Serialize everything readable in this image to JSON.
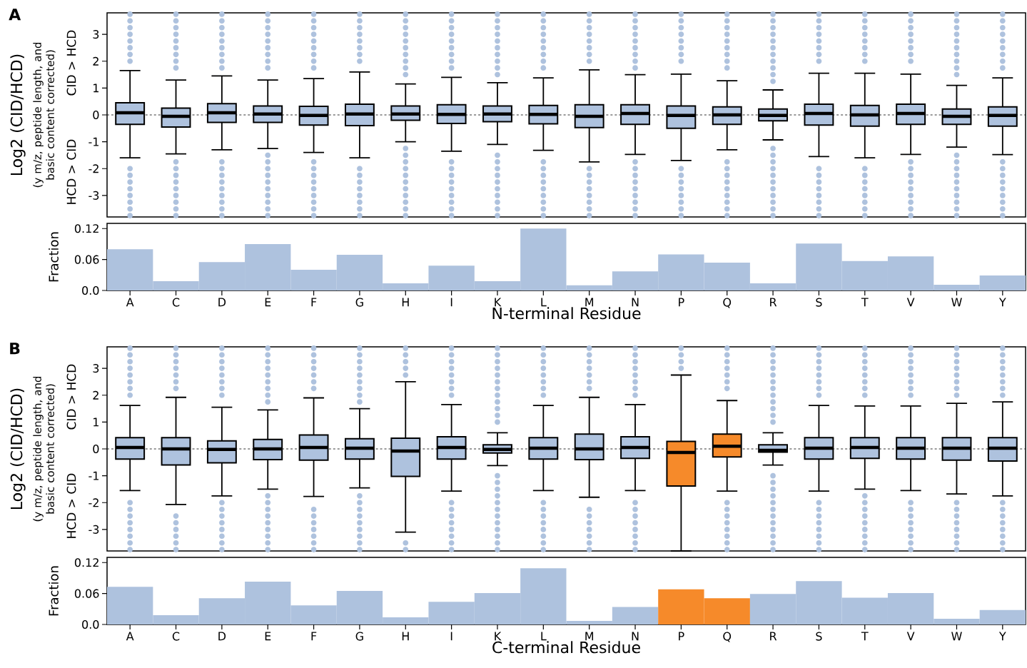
{
  "chart_data": [
    {
      "type": "box",
      "title": "A",
      "ylabel": "Log2 (CID/HCD)",
      "annotations": [
        "(y m/z, peptide length, and basic content corrected)",
        "CID > HCD",
        "HCD > CID"
      ],
      "categories": [
        null,
        null,
        null,
        null,
        null,
        null,
        null,
        null,
        null,
        null,
        null,
        null,
        null,
        null,
        null,
        null,
        null,
        null,
        null,
        null
      ],
      "ylim": [
        -3.8,
        3.8
      ],
      "yticks": [
        -3,
        -2,
        -1,
        0,
        1,
        2,
        3
      ],
      "tick_labels": "y",
      "color": "#aec2de",
      "colors": [
        "#aec2de",
        "#aec2de",
        "#aec2de",
        "#aec2de",
        "#aec2de",
        "#aec2de",
        "#aec2de",
        "#aec2de",
        "#aec2de",
        "#aec2de",
        "#aec2de",
        "#aec2de",
        "#aec2de",
        "#aec2de",
        "#aec2de",
        "#aec2de",
        "#aec2de",
        "#aec2de",
        "#aec2de",
        "#aec2de"
      ],
      "ref_lines": [
        {
          "axis": "y",
          "value": 0,
          "line_style": "dashed",
          "color": "#000000"
        }
      ],
      "boxes": [
        {
          "low": -1.6,
          "q1": -0.35,
          "median": 0.08,
          "q3": 0.45,
          "high": 1.65,
          "outliers": [
            -3.75,
            -3.5,
            -3.25,
            -3,
            -2.75,
            -2.5,
            -2.25,
            -2,
            2,
            2.25,
            2.5,
            2.75,
            3,
            3.25,
            3.5,
            3.75
          ]
        },
        {
          "low": -1.45,
          "q1": -0.45,
          "median": -0.05,
          "q3": 0.25,
          "high": 1.3,
          "outliers": [
            -3.75,
            -3.5,
            -3.25,
            -3,
            -2.75,
            -2.5,
            -2.25,
            -2,
            -1.75,
            1.75,
            2,
            2.25,
            2.5,
            2.75,
            3,
            3.25,
            3.5,
            3.75
          ]
        },
        {
          "low": -1.3,
          "q1": -0.28,
          "median": 0.08,
          "q3": 0.42,
          "high": 1.45,
          "outliers": [
            -3.75,
            -3.5,
            -3.25,
            -3,
            -2.75,
            -2.5,
            -2.25,
            -2,
            -1.75,
            1.75,
            2,
            2.25,
            2.5,
            2.75,
            3,
            3.25,
            3.5,
            3.75
          ]
        },
        {
          "low": -1.25,
          "q1": -0.28,
          "median": 0.03,
          "q3": 0.33,
          "high": 1.3,
          "outliers": [
            -3.75,
            -3.5,
            -3.25,
            -3,
            -2.75,
            -2.5,
            -2.25,
            -2,
            -1.75,
            -1.5,
            1.75,
            2,
            2.25,
            2.5,
            2.75,
            3,
            3.25,
            3.5,
            3.75
          ]
        },
        {
          "low": -1.4,
          "q1": -0.38,
          "median": -0.02,
          "q3": 0.32,
          "high": 1.35,
          "outliers": [
            -3.75,
            -3.5,
            -3.25,
            -3,
            -2.75,
            -2.5,
            -2.25,
            -2,
            -1.75,
            1.75,
            2,
            2.25,
            2.5,
            2.75,
            3,
            3.25,
            3.5,
            3.75
          ]
        },
        {
          "low": -1.6,
          "q1": -0.4,
          "median": 0.03,
          "q3": 0.4,
          "high": 1.6,
          "outliers": [
            -3.75,
            -3.5,
            -3.25,
            -3,
            -2.75,
            -2.5,
            -2.25,
            -2,
            2,
            2.25,
            2.5,
            2.75,
            3,
            3.25,
            3.5,
            3.75
          ]
        },
        {
          "low": -1.0,
          "q1": -0.2,
          "median": 0.03,
          "q3": 0.33,
          "high": 1.15,
          "outliers": [
            -3.75,
            -3.5,
            -3.25,
            -3,
            -2.75,
            -2.5,
            -2.25,
            -2,
            -1.75,
            -1.5,
            -1.25,
            1.5,
            1.75,
            2,
            2.25,
            2.5,
            2.75,
            3,
            3.25,
            3.5,
            3.75
          ]
        },
        {
          "low": -1.35,
          "q1": -0.32,
          "median": 0.02,
          "q3": 0.38,
          "high": 1.4,
          "outliers": [
            -3.75,
            -3.5,
            -3.25,
            -3,
            -2.75,
            -2.5,
            -2.25,
            -2,
            -1.75,
            1.75,
            2,
            2.25,
            2.5,
            2.75,
            3,
            3.25,
            3.5,
            3.75
          ]
        },
        {
          "low": -1.1,
          "q1": -0.25,
          "median": 0.03,
          "q3": 0.33,
          "high": 1.2,
          "outliers": [
            -3.75,
            -3.5,
            -3.25,
            -3,
            -2.75,
            -2.5,
            -2.25,
            -2,
            -1.75,
            -1.5,
            1.5,
            1.75,
            2,
            2.25,
            2.5,
            2.75,
            3,
            3.25,
            3.5,
            3.75
          ]
        },
        {
          "low": -1.32,
          "q1": -0.33,
          "median": 0.02,
          "q3": 0.35,
          "high": 1.38,
          "outliers": [
            -3.75,
            -3.5,
            -3.25,
            -3,
            -2.75,
            -2.5,
            -2.25,
            -2,
            -1.75,
            1.75,
            2,
            2.25,
            2.5,
            2.75,
            3,
            3.25,
            3.5,
            3.75
          ]
        },
        {
          "low": -1.75,
          "q1": -0.47,
          "median": -0.05,
          "q3": 0.38,
          "high": 1.68,
          "outliers": [
            -3.75,
            -3.5,
            -3.25,
            -3,
            -2.75,
            -2.5,
            -2.25,
            -2,
            2,
            2.25,
            2.5,
            2.75,
            3,
            3.25,
            3.5,
            3.75
          ]
        },
        {
          "low": -1.47,
          "q1": -0.35,
          "median": 0.05,
          "q3": 0.38,
          "high": 1.5,
          "outliers": [
            -3.75,
            -3.5,
            -3.25,
            -3,
            -2.75,
            -2.5,
            -2.25,
            -2,
            -1.75,
            1.75,
            2,
            2.25,
            2.5,
            2.75,
            3,
            3.25,
            3.5,
            3.75
          ]
        },
        {
          "low": -1.7,
          "q1": -0.5,
          "median": -0.02,
          "q3": 0.33,
          "high": 1.52,
          "outliers": [
            -3.75,
            -3.5,
            -3.25,
            -3,
            -2.75,
            -2.5,
            -2.25,
            -2,
            2,
            2.25,
            2.5,
            2.75,
            3,
            3.25,
            3.5,
            3.75
          ]
        },
        {
          "low": -1.3,
          "q1": -0.35,
          "median": 0.0,
          "q3": 0.3,
          "high": 1.27,
          "outliers": [
            -3.75,
            -3.5,
            -3.25,
            -3,
            -2.75,
            -2.5,
            -2.25,
            -2,
            -1.75,
            1.75,
            2,
            2.25,
            2.5,
            2.75,
            3,
            3.25,
            3.5,
            3.75
          ]
        },
        {
          "low": -0.93,
          "q1": -0.22,
          "median": -0.02,
          "q3": 0.22,
          "high": 0.93,
          "outliers": [
            -3.75,
            -3.5,
            -3.25,
            -3,
            -2.75,
            -2.5,
            -2.25,
            -2,
            -1.75,
            -1.5,
            -1.25,
            1.25,
            1.5,
            1.75,
            2,
            2.25,
            2.5,
            2.75,
            3,
            3.25,
            3.5,
            3.75
          ]
        },
        {
          "low": -1.55,
          "q1": -0.38,
          "median": 0.05,
          "q3": 0.4,
          "high": 1.55,
          "outliers": [
            -3.75,
            -3.5,
            -3.25,
            -3,
            -2.75,
            -2.5,
            -2.25,
            -2,
            2,
            2.25,
            2.5,
            2.75,
            3,
            3.25,
            3.5,
            3.75
          ]
        },
        {
          "low": -1.6,
          "q1": -0.42,
          "median": 0.0,
          "q3": 0.35,
          "high": 1.55,
          "outliers": [
            -3.75,
            -3.5,
            -3.25,
            -3,
            -2.75,
            -2.5,
            -2.25,
            -2,
            2,
            2.25,
            2.5,
            2.75,
            3,
            3.25,
            3.5,
            3.75
          ]
        },
        {
          "low": -1.47,
          "q1": -0.35,
          "median": 0.05,
          "q3": 0.4,
          "high": 1.52,
          "outliers": [
            -3.75,
            -3.5,
            -3.25,
            -3,
            -2.75,
            -2.5,
            -2.25,
            -2,
            -1.75,
            2,
            2.25,
            2.5,
            2.75,
            3,
            3.25,
            3.5,
            3.75
          ]
        },
        {
          "low": -1.2,
          "q1": -0.35,
          "median": -0.05,
          "q3": 0.22,
          "high": 1.1,
          "outliers": [
            -3.75,
            -3.5,
            -3.25,
            -3,
            -2.75,
            -2.5,
            -2.25,
            -2,
            -1.75,
            -1.5,
            1.5,
            1.75,
            2,
            2.25,
            2.5,
            2.75,
            3,
            3.25,
            3.5,
            3.75
          ]
        },
        {
          "low": -1.48,
          "q1": -0.42,
          "median": -0.02,
          "q3": 0.3,
          "high": 1.38,
          "outliers": [
            -3.75,
            -3.5,
            -3.25,
            -3,
            -2.75,
            -2.5,
            -2.25,
            -2,
            -1.75,
            1.75,
            2,
            2.25,
            2.5,
            2.75,
            3,
            3.25,
            3.5,
            3.75
          ]
        }
      ]
    },
    {
      "type": "bar",
      "xlabel": "N-terminal Residue",
      "ylabel": "Fraction",
      "categories": [
        "A",
        "C",
        "D",
        "E",
        "F",
        "G",
        "H",
        "I",
        "K",
        "L",
        "M",
        "N",
        "P",
        "Q",
        "R",
        "S",
        "T",
        "V",
        "W",
        "Y"
      ],
      "ylim": [
        0,
        0.13
      ],
      "yticks": [
        {
          "value": 0,
          "label": "0.0"
        },
        0.06,
        0.12
      ],
      "values": [
        0.08,
        0.018,
        0.055,
        0.09,
        0.04,
        0.069,
        0.014,
        0.048,
        0.018,
        0.12,
        0.01,
        0.037,
        0.07,
        0.054,
        0.014,
        0.091,
        0.057,
        0.066,
        0.011,
        0.029
      ],
      "colors": [
        "#aec2de",
        "#aec2de",
        "#aec2de",
        "#aec2de",
        "#aec2de",
        "#aec2de",
        "#aec2de",
        "#aec2de",
        "#aec2de",
        "#aec2de",
        "#aec2de",
        "#aec2de",
        "#aec2de",
        "#aec2de",
        "#aec2de",
        "#aec2de",
        "#aec2de",
        "#aec2de",
        "#aec2de",
        "#aec2de"
      ]
    },
    {
      "type": "box",
      "title": "B",
      "ylabel": "Log2 (CID/HCD)",
      "annotations": [
        "(y m/z, peptide length, and basic content corrected)",
        "CID > HCD",
        "HCD > CID"
      ],
      "categories": [
        null,
        null,
        null,
        null,
        null,
        null,
        null,
        null,
        null,
        null,
        null,
        null,
        null,
        null,
        null,
        null,
        null,
        null,
        null,
        null
      ],
      "ylim": [
        -3.8,
        3.8
      ],
      "yticks": [
        -3,
        -2,
        -1,
        0,
        1,
        2,
        3
      ],
      "tick_labels": "y",
      "color": "#aec2de",
      "colors": [
        "#aec2de",
        "#aec2de",
        "#aec2de",
        "#aec2de",
        "#aec2de",
        "#aec2de",
        "#aec2de",
        "#aec2de",
        "#aec2de",
        "#aec2de",
        "#aec2de",
        "#aec2de",
        "#f68a2a",
        "#f68a2a",
        "#aec2de",
        "#aec2de",
        "#aec2de",
        "#aec2de",
        "#aec2de",
        "#aec2de"
      ],
      "ref_lines": [
        {
          "axis": "y",
          "value": 0,
          "line_style": "dashed",
          "color": "#000000"
        }
      ],
      "boxes": [
        {
          "low": -1.55,
          "q1": -0.38,
          "median": 0.05,
          "q3": 0.42,
          "high": 1.62,
          "outliers": [
            -3.75,
            -3.5,
            -3.25,
            -3,
            -2.75,
            -2.5,
            -2.25,
            -2,
            2,
            2.25,
            2.5,
            2.75,
            3,
            3.25,
            3.5,
            3.75
          ]
        },
        {
          "low": -2.07,
          "q1": -0.6,
          "median": 0.0,
          "q3": 0.42,
          "high": 1.92,
          "outliers": [
            -3.75,
            -3.5,
            -3.25,
            -3,
            -2.75,
            -2.5,
            2.25,
            2.5,
            2.75,
            3,
            3.25,
            3.5,
            3.75
          ]
        },
        {
          "low": -1.75,
          "q1": -0.52,
          "median": -0.02,
          "q3": 0.3,
          "high": 1.55,
          "outliers": [
            -3.75,
            -3.5,
            -3.25,
            -3,
            -2.75,
            -2.5,
            -2.25,
            -2,
            2,
            2.25,
            2.5,
            2.75,
            3,
            3.25,
            3.5,
            3.75
          ]
        },
        {
          "low": -1.5,
          "q1": -0.4,
          "median": 0.0,
          "q3": 0.35,
          "high": 1.45,
          "outliers": [
            -3.75,
            -3.5,
            -3.25,
            -3,
            -2.75,
            -2.5,
            -2.25,
            -2,
            -1.75,
            1.75,
            2,
            2.25,
            2.5,
            2.75,
            3,
            3.25,
            3.5,
            3.75
          ]
        },
        {
          "low": -1.77,
          "q1": -0.42,
          "median": 0.05,
          "q3": 0.52,
          "high": 1.9,
          "outliers": [
            -3.75,
            -3.5,
            -3.25,
            -3,
            -2.75,
            -2.5,
            -2.25,
            2.25,
            2.5,
            2.75,
            3,
            3.25,
            3.5,
            3.75
          ]
        },
        {
          "low": -1.45,
          "q1": -0.38,
          "median": 0.03,
          "q3": 0.38,
          "high": 1.5,
          "outliers": [
            -3.75,
            -3.5,
            -3.25,
            -3,
            -2.75,
            -2.5,
            -2.25,
            -2,
            -1.75,
            1.75,
            2,
            2.25,
            2.5,
            2.75,
            3,
            3.25,
            3.5,
            3.75
          ]
        },
        {
          "low": -3.1,
          "q1": -1.02,
          "median": -0.08,
          "q3": 0.4,
          "high": 2.5,
          "outliers": [
            -3.75,
            -3.5,
            2.75,
            3,
            3.25,
            3.5,
            3.75
          ]
        },
        {
          "low": -1.57,
          "q1": -0.38,
          "median": 0.05,
          "q3": 0.45,
          "high": 1.65,
          "outliers": [
            -3.75,
            -3.5,
            -3.25,
            -3,
            -2.75,
            -2.5,
            -2.25,
            -2,
            2,
            2.25,
            2.5,
            2.75,
            3,
            3.25,
            3.5,
            3.75
          ]
        },
        {
          "low": -0.62,
          "q1": -0.15,
          "median": -0.02,
          "q3": 0.15,
          "high": 0.6,
          "outliers": [
            -3.75,
            -3.5,
            -3.25,
            -3,
            -2.75,
            -2.5,
            -2.25,
            -2,
            -1.75,
            -1.5,
            -1.25,
            -1,
            1,
            1.25,
            1.5,
            1.75,
            2,
            2.25,
            2.5,
            2.75,
            3,
            3.25,
            3.5,
            3.75
          ]
        },
        {
          "low": -1.55,
          "q1": -0.38,
          "median": 0.03,
          "q3": 0.42,
          "high": 1.62,
          "outliers": [
            -3.75,
            -3.5,
            -3.25,
            -3,
            -2.75,
            -2.5,
            -2.25,
            -2,
            2,
            2.25,
            2.5,
            2.75,
            3,
            3.25,
            3.5,
            3.75
          ]
        },
        {
          "low": -1.8,
          "q1": -0.4,
          "median": 0.0,
          "q3": 0.55,
          "high": 1.92,
          "outliers": [
            -3.75,
            -3.5,
            -3.25,
            -3,
            -2.75,
            -2.5,
            -2.25,
            2.25,
            2.5,
            2.75,
            3,
            3.25,
            3.5,
            3.75
          ]
        },
        {
          "low": -1.55,
          "q1": -0.35,
          "median": 0.05,
          "q3": 0.45,
          "high": 1.65,
          "outliers": [
            -3.75,
            -3.5,
            -3.25,
            -3,
            -2.75,
            -2.5,
            -2.25,
            -2,
            2,
            2.25,
            2.5,
            2.75,
            3,
            3.25,
            3.5,
            3.75
          ]
        },
        {
          "low": -3.8,
          "q1": -1.38,
          "median": -0.13,
          "q3": 0.28,
          "high": 2.75,
          "outliers": [
            3,
            3.25,
            3.5,
            3.75
          ]
        },
        {
          "low": -1.57,
          "q1": -0.3,
          "median": 0.1,
          "q3": 0.55,
          "high": 1.8,
          "outliers": [
            -3.75,
            -3.5,
            -3.25,
            -3,
            -2.75,
            -2.5,
            -2.25,
            -2,
            2.25,
            2.5,
            2.75,
            3,
            3.25,
            3.5,
            3.75
          ]
        },
        {
          "low": -0.6,
          "q1": -0.12,
          "median": -0.05,
          "q3": 0.15,
          "high": 0.6,
          "outliers": [
            -3.75,
            -3.5,
            -3.25,
            -3,
            -2.75,
            -2.5,
            -2.25,
            -2,
            -1.75,
            -1.5,
            -1.25,
            -1,
            1,
            1.25,
            1.5,
            1.75,
            2,
            2.25,
            2.5,
            2.75,
            3,
            3.25,
            3.5,
            3.75
          ]
        },
        {
          "low": -1.57,
          "q1": -0.38,
          "median": 0.03,
          "q3": 0.42,
          "high": 1.62,
          "outliers": [
            -3.75,
            -3.5,
            -3.25,
            -3,
            -2.75,
            -2.5,
            -2.25,
            -2,
            2,
            2.25,
            2.5,
            2.75,
            3,
            3.25,
            3.5,
            3.75
          ]
        },
        {
          "low": -1.5,
          "q1": -0.35,
          "median": 0.05,
          "q3": 0.42,
          "high": 1.6,
          "outliers": [
            -3.75,
            -3.5,
            -3.25,
            -3,
            -2.75,
            -2.5,
            -2.25,
            -2,
            -1.75,
            2,
            2.25,
            2.5,
            2.75,
            3,
            3.25,
            3.5,
            3.75
          ]
        },
        {
          "low": -1.55,
          "q1": -0.38,
          "median": 0.03,
          "q3": 0.42,
          "high": 1.6,
          "outliers": [
            -3.75,
            -3.5,
            -3.25,
            -3,
            -2.75,
            -2.5,
            -2.25,
            -2,
            2,
            2.25,
            2.5,
            2.75,
            3,
            3.25,
            3.5,
            3.75
          ]
        },
        {
          "low": -1.68,
          "q1": -0.42,
          "median": 0.03,
          "q3": 0.42,
          "high": 1.7,
          "outliers": [
            -3.75,
            -3.5,
            -3.25,
            -3,
            -2.75,
            -2.5,
            -2.25,
            -2,
            2,
            2.25,
            2.5,
            2.75,
            3,
            3.25,
            3.5,
            3.75
          ]
        },
        {
          "low": -1.75,
          "q1": -0.45,
          "median": 0.03,
          "q3": 0.42,
          "high": 1.75,
          "outliers": [
            -3.75,
            -3.5,
            -3.25,
            -3,
            -2.75,
            -2.5,
            -2.25,
            -2,
            2,
            2.25,
            2.5,
            2.75,
            3,
            3.25,
            3.5,
            3.75
          ]
        }
      ]
    },
    {
      "type": "bar",
      "xlabel": "C-terminal Residue",
      "ylabel": "Fraction",
      "categories": [
        "A",
        "C",
        "D",
        "E",
        "F",
        "G",
        "H",
        "I",
        "K",
        "L",
        "M",
        "N",
        "P",
        "Q",
        "R",
        "S",
        "T",
        "V",
        "W",
        "Y"
      ],
      "ylim": [
        0,
        0.13
      ],
      "yticks": [
        {
          "value": 0,
          "label": "0.0"
        },
        0.06,
        0.12
      ],
      "values": [
        0.073,
        0.018,
        0.051,
        0.083,
        0.037,
        0.065,
        0.014,
        0.044,
        0.061,
        0.109,
        0.007,
        0.034,
        0.068,
        0.051,
        0.059,
        0.084,
        0.052,
        0.061,
        0.011,
        0.028
      ],
      "colors": [
        "#aec2de",
        "#aec2de",
        "#aec2de",
        "#aec2de",
        "#aec2de",
        "#aec2de",
        "#aec2de",
        "#aec2de",
        "#aec2de",
        "#aec2de",
        "#aec2de",
        "#aec2de",
        "#f68a2a",
        "#f68a2a",
        "#aec2de",
        "#aec2de",
        "#aec2de",
        "#aec2de",
        "#aec2de",
        "#aec2de"
      ]
    }
  ]
}
